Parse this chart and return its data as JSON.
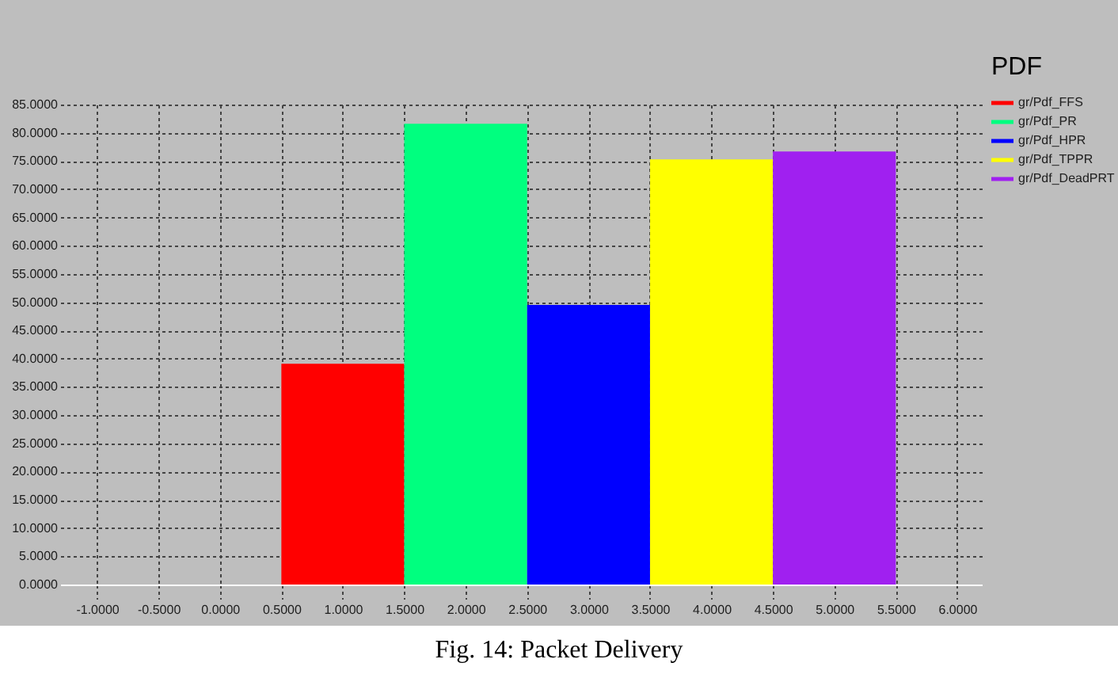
{
  "chart_data": {
    "type": "bar",
    "legend_title": "PDF",
    "series": [
      {
        "name": "gr/Pdf_FFS",
        "color": "#ff0000",
        "x": [
          1
        ],
        "values": [
          39.1
        ]
      },
      {
        "name": "gr/Pdf_PR",
        "color": "#00ff7f",
        "x": [
          2
        ],
        "values": [
          81.6
        ]
      },
      {
        "name": "gr/Pdf_HPR",
        "color": "#0000ff",
        "x": [
          3
        ],
        "values": [
          49.5
        ]
      },
      {
        "name": "gr/Pdf_TPPR",
        "color": "#ffff00",
        "x": [
          4
        ],
        "values": [
          75.3
        ]
      },
      {
        "name": "gr/Pdf_DeadPRT",
        "color": "#a020f0",
        "x": [
          5
        ],
        "values": [
          76.7
        ]
      }
    ],
    "xlim": [
      -1.3,
      6.2
    ],
    "xticks": [
      {
        "value": -1,
        "label": "-1.0000"
      },
      {
        "value": -0.5,
        "label": "-0.5000"
      },
      {
        "value": 0,
        "label": "0.0000"
      },
      {
        "value": 0.5,
        "label": "0.5000"
      },
      {
        "value": 1,
        "label": "1.0000"
      },
      {
        "value": 1.5,
        "label": "1.5000"
      },
      {
        "value": 2,
        "label": "2.0000"
      },
      {
        "value": 2.5,
        "label": "2.5000"
      },
      {
        "value": 3,
        "label": "3.0000"
      },
      {
        "value": 3.5,
        "label": "3.5000"
      },
      {
        "value": 4,
        "label": "4.0000"
      },
      {
        "value": 4.5,
        "label": "4.5000"
      },
      {
        "value": 5,
        "label": "5.0000"
      },
      {
        "value": 5.5,
        "label": "5.5000"
      },
      {
        "value": 6,
        "label": "6.0000"
      }
    ],
    "ylim": [
      0,
      85
    ],
    "yticks": [
      {
        "value": 0,
        "label": "0.0000"
      },
      {
        "value": 5,
        "label": "5.0000"
      },
      {
        "value": 10,
        "label": "10.0000"
      },
      {
        "value": 15,
        "label": "15.0000"
      },
      {
        "value": 20,
        "label": "20.0000"
      },
      {
        "value": 25,
        "label": "25.0000"
      },
      {
        "value": 30,
        "label": "30.0000"
      },
      {
        "value": 35,
        "label": "35.0000"
      },
      {
        "value": 40,
        "label": "40.0000"
      },
      {
        "value": 45,
        "label": "45.0000"
      },
      {
        "value": 50,
        "label": "50.0000"
      },
      {
        "value": 55,
        "label": "55.0000"
      },
      {
        "value": 60,
        "label": "60.0000"
      },
      {
        "value": 65,
        "label": "65.0000"
      },
      {
        "value": 70,
        "label": "70.0000"
      },
      {
        "value": 75,
        "label": "75.0000"
      },
      {
        "value": 80,
        "label": "80.0000"
      },
      {
        "value": 85,
        "label": "85.0000"
      }
    ],
    "grid": true,
    "legend": "top right",
    "annotations": [
      "Fig. 14: Packet Delivery"
    ]
  }
}
